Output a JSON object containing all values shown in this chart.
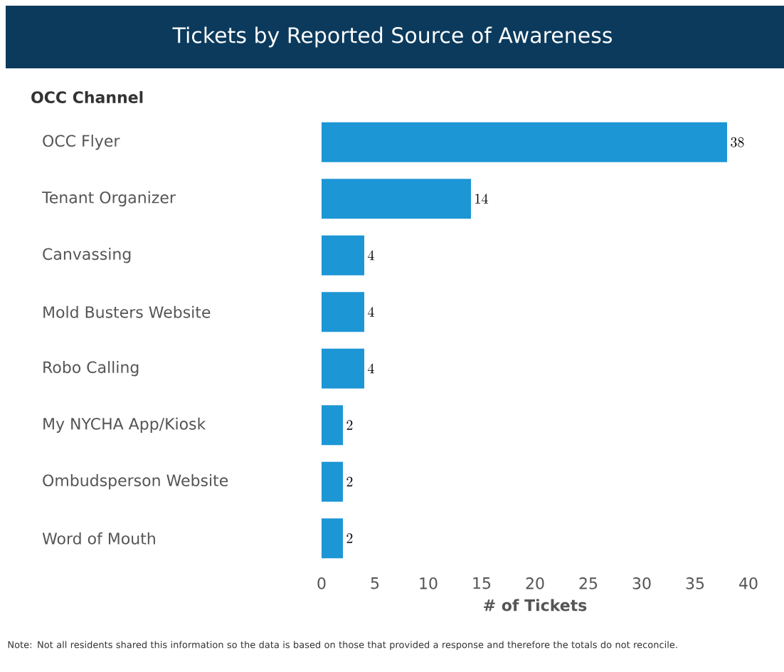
{
  "chart_data": {
    "type": "bar",
    "orientation": "horizontal",
    "title": "Tickets by Reported Source of Awareness",
    "ylabel": "OCC Channel",
    "xlabel": "# of Tickets",
    "categories": [
      "OCC Flyer",
      "Tenant Organizer",
      "Canvassing",
      "Mold Busters Website",
      "Robo Calling",
      "My NYCHA App/Kiosk",
      "Ombudsperson Website",
      "Word of Mouth"
    ],
    "values": [
      38,
      14,
      4,
      4,
      4,
      2,
      2,
      2
    ],
    "color": "#1c96d5",
    "xlim": [
      0,
      40
    ],
    "xticks": [
      0,
      5,
      10,
      15,
      20,
      25,
      30,
      35,
      40
    ],
    "data_labels": true,
    "grid": false,
    "annotations": [
      "Note: Not all residents shared this information so the data is based on those that provided a response and therefore the totals do not reconcile."
    ]
  }
}
